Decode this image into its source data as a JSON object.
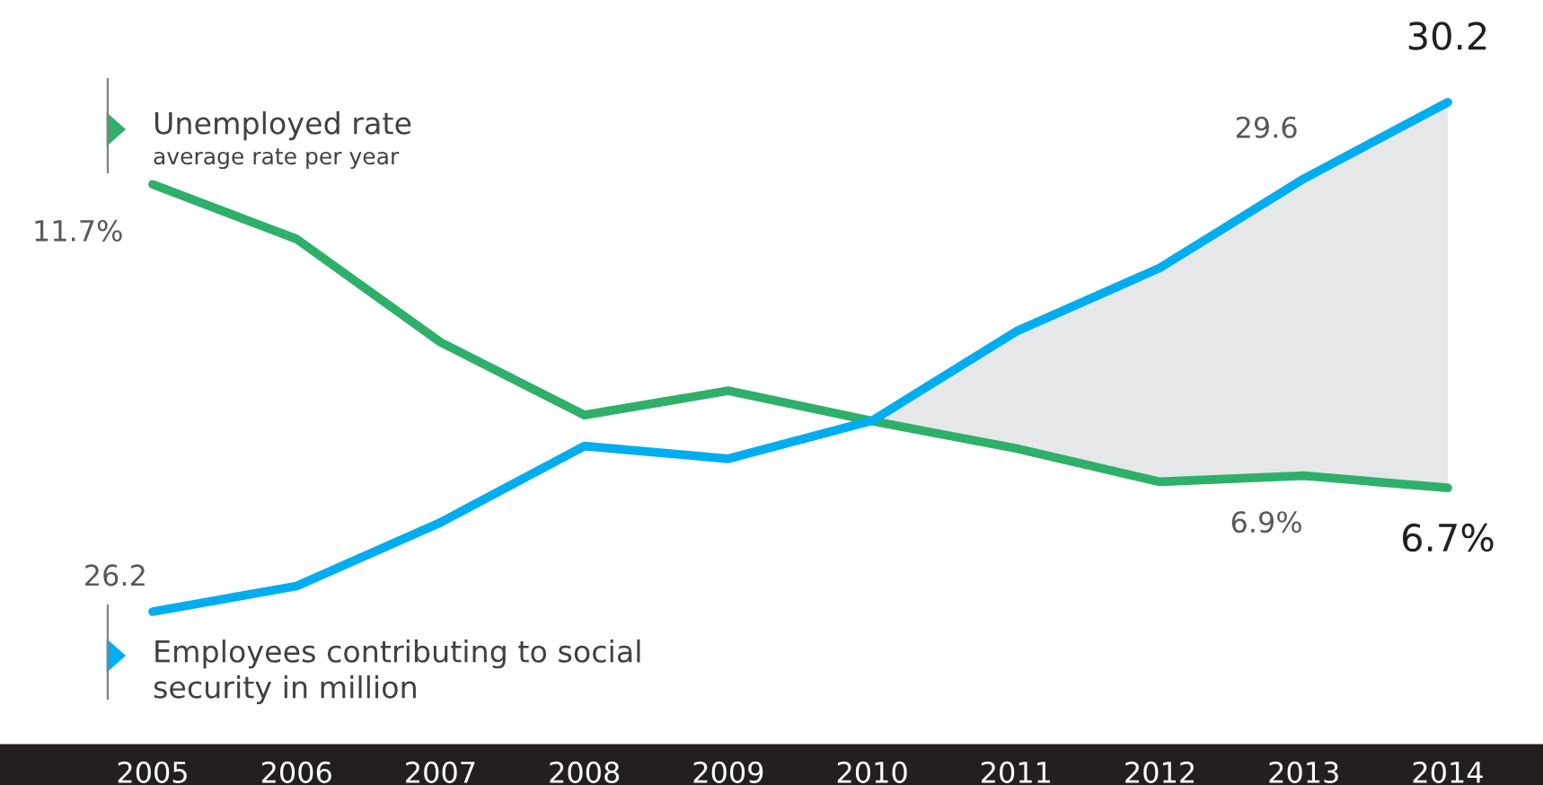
{
  "chart_data": {
    "type": "line",
    "categories": [
      "2005",
      "2006",
      "2007",
      "2008",
      "2009",
      "2010",
      "2011",
      "2012",
      "2013",
      "2014"
    ],
    "series": [
      {
        "name": "Unemployed rate",
        "color": "#2eb06b",
        "values": [
          11.7,
          10.8,
          9.1,
          7.9,
          8.3,
          7.8,
          7.35,
          6.8,
          6.9,
          6.7
        ],
        "value_labels": [
          "11.7%",
          null,
          null,
          null,
          null,
          null,
          null,
          null,
          "6.9%",
          "6.7%"
        ]
      },
      {
        "name": "Employees contributing to social security in million",
        "color": "#00aeef",
        "axis": "y2",
        "values": [
          26.2,
          26.4,
          26.9,
          27.5,
          27.4,
          27.7,
          28.4,
          28.9,
          29.6,
          30.2
        ],
        "value_labels": [
          "26.2",
          null,
          null,
          null,
          null,
          null,
          null,
          null,
          "29.6",
          "30.2"
        ]
      }
    ],
    "annotations": [
      "average rate per year"
    ],
    "tick_labels": "x",
    "grid": false,
    "legend": "left"
  }
}
